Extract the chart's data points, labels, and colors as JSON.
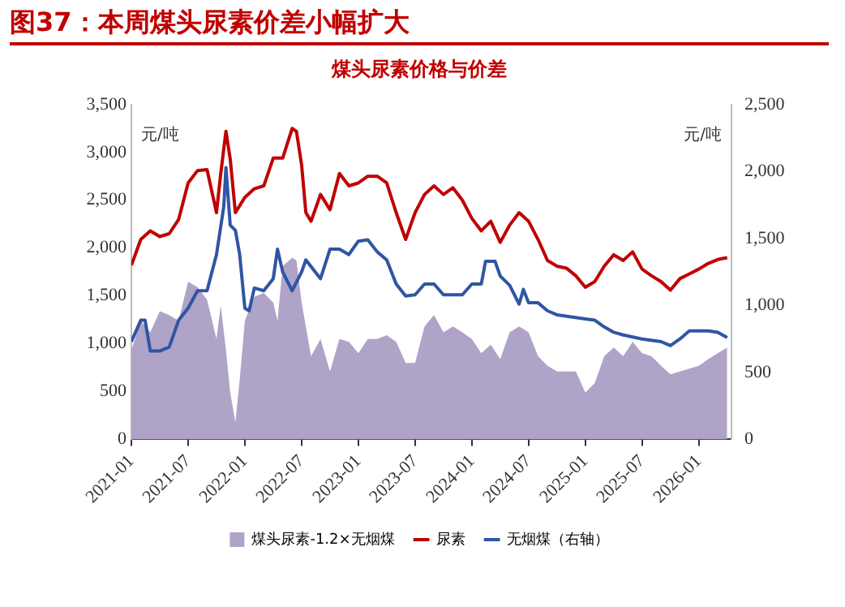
{
  "chart_data": {
    "type": "area",
    "title": "图37：本周煤头尿素价差小幅扩大",
    "subtitle": "煤头尿素价格与价差",
    "annotations": [
      "元/吨",
      "元/吨"
    ],
    "xlim": [
      "2021-01",
      "2026-04-15"
    ],
    "xticks": [
      "2021-01",
      "2021-07",
      "2022-01",
      "2022-07",
      "2023-01",
      "2023-07",
      "2024-01",
      "2024-07",
      "2025-01",
      "2025-07",
      "2026-01"
    ],
    "ylim": [
      0,
      3500
    ],
    "yticks": [
      0,
      500,
      {
        "value": 1000,
        "label": "1,000"
      },
      {
        "value": 1500,
        "label": "1,500"
      },
      {
        "value": 2000,
        "label": "2,000"
      },
      {
        "value": 2500,
        "label": "2,500"
      },
      {
        "value": 3000,
        "label": "3,000"
      },
      {
        "value": 3500,
        "label": "3,500"
      }
    ],
    "y2lim": [
      0,
      2500
    ],
    "y2ticks": [
      0,
      500,
      {
        "value": 1000,
        "label": "1,000"
      },
      {
        "value": 1500,
        "label": "1,500"
      },
      {
        "value": 2000,
        "label": "2,000"
      },
      {
        "value": 2500,
        "label": "2,500"
      }
    ],
    "grid": false,
    "legend": "bottom",
    "marker": "none",
    "series": [
      {
        "name": "煤头尿素-1.2×无烟煤",
        "type": "area",
        "color": "#b0a3c8",
        "x": [
          "2021-01",
          "2021-02",
          "2021-03",
          "2021-04",
          "2021-05",
          "2021-06",
          "2021-07",
          "2021-08",
          "2021-09",
          "2021-10",
          "2021-10-15",
          "2021-11",
          "2021-11-15",
          "2021-12",
          "2021-12-15",
          "2022-01",
          "2022-02",
          "2022-03",
          "2022-04",
          "2022-04-15",
          "2022-05",
          "2022-06",
          "2022-06-15",
          "2022-07",
          "2022-08",
          "2022-09",
          "2022-10",
          "2022-11",
          "2022-12",
          "2023-01",
          "2023-02",
          "2023-03",
          "2023-04",
          "2023-05",
          "2023-06",
          "2023-07",
          "2023-08",
          "2023-09",
          "2023-10",
          "2023-11",
          "2023-12",
          "2024-01",
          "2024-02",
          "2024-03",
          "2024-04",
          "2024-05",
          "2024-06",
          "2024-07",
          "2024-08",
          "2024-09",
          "2024-10",
          "2024-11",
          "2024-12",
          "2025-01",
          "2025-02",
          "2025-03",
          "2025-04",
          "2025-05",
          "2025-06",
          "2025-07",
          "2025-08",
          "2025-09",
          "2025-10",
          "2025-11",
          "2025-12",
          "2026-01",
          "2026-02",
          "2026-03",
          "2026-04"
        ],
        "values": [
          930,
          1240,
          1120,
          1340,
          1300,
          1240,
          1650,
          1590,
          1460,
          1050,
          1400,
          930,
          490,
          180,
          620,
          1240,
          1490,
          1530,
          1430,
          1240,
          1810,
          1900,
          1870,
          1430,
          870,
          1050,
          710,
          1050,
          1020,
          900,
          1050,
          1050,
          1090,
          1020,
          800,
          800,
          1180,
          1300,
          1120,
          1180,
          1120,
          1050,
          900,
          990,
          840,
          1120,
          1180,
          1120,
          870,
          770,
          710,
          710,
          710,
          490,
          590,
          870,
          960,
          870,
          1020,
          900,
          870,
          770,
          680,
          710,
          740,
          770,
          840,
          900,
          960
        ]
      },
      {
        "name": "尿素",
        "type": "line",
        "color": "#c00000",
        "x": [
          "2021-01",
          "2021-02",
          "2021-03",
          "2021-04",
          "2021-05",
          "2021-06",
          "2021-07",
          "2021-08",
          "2021-09",
          "2021-10",
          "2021-10-15",
          "2021-11",
          "2021-11-15",
          "2021-12",
          "2022-01",
          "2022-02",
          "2022-03",
          "2022-04",
          "2022-05",
          "2022-06",
          "2022-06-15",
          "2022-07",
          "2022-07-15",
          "2022-08",
          "2022-09",
          "2022-10",
          "2022-11",
          "2022-12",
          "2023-01",
          "2023-02",
          "2023-03",
          "2023-04",
          "2023-05",
          "2023-06",
          "2023-07",
          "2023-08",
          "2023-09",
          "2023-10",
          "2023-11",
          "2023-12",
          "2024-01",
          "2024-02",
          "2024-03",
          "2024-04",
          "2024-05",
          "2024-06",
          "2024-07",
          "2024-08",
          "2024-09",
          "2024-10",
          "2024-11",
          "2024-12",
          "2025-01",
          "2025-02",
          "2025-03",
          "2025-04",
          "2025-05",
          "2025-06",
          "2025-07",
          "2025-08",
          "2025-09",
          "2025-10",
          "2025-11",
          "2025-12",
          "2026-01",
          "2026-02",
          "2026-03",
          "2026-04"
        ],
        "values": [
          1820,
          2090,
          2180,
          2120,
          2150,
          2300,
          2680,
          2810,
          2820,
          2370,
          2780,
          3220,
          2930,
          2370,
          2530,
          2620,
          2650,
          2940,
          2940,
          3250,
          3220,
          2870,
          2370,
          2280,
          2560,
          2400,
          2780,
          2650,
          2680,
          2750,
          2750,
          2680,
          2370,
          2090,
          2370,
          2560,
          2650,
          2560,
          2630,
          2500,
          2310,
          2180,
          2280,
          2060,
          2240,
          2370,
          2280,
          2090,
          1870,
          1810,
          1790,
          1710,
          1590,
          1650,
          1810,
          1930,
          1870,
          1960,
          1780,
          1710,
          1650,
          1560,
          1680,
          1730,
          1780,
          1840,
          1880,
          1900
        ]
      },
      {
        "name": "无烟煤（右轴）",
        "type": "line",
        "axis": "y2",
        "color": "#2f55a4",
        "x": [
          "2021-01",
          "2021-02",
          "2021-02-15",
          "2021-03",
          "2021-04",
          "2021-05",
          "2021-06",
          "2021-07",
          "2021-08",
          "2021-09",
          "2021-10",
          "2021-10-25",
          "2021-11",
          "2021-11-15",
          "2021-12",
          "2021-12-15",
          "2022-01",
          "2022-01-15",
          "2022-02",
          "2022-03",
          "2022-04",
          "2022-04-15",
          "2022-05",
          "2022-06",
          "2022-07",
          "2022-07-15",
          "2022-08",
          "2022-09",
          "2022-10",
          "2022-11",
          "2022-12",
          "2023-01",
          "2023-02",
          "2023-03",
          "2023-04",
          "2023-05",
          "2023-06",
          "2023-07",
          "2023-08",
          "2023-09",
          "2023-10",
          "2023-12",
          "2024-01",
          "2024-02",
          "2024-02-15",
          "2024-03-15",
          "2024-04",
          "2024-05",
          "2024-06",
          "2024-06-15",
          "2024-07",
          "2024-08",
          "2024-09",
          "2024-10",
          "2025-01",
          "2025-02",
          "2025-03",
          "2025-04",
          "2025-05",
          "2025-07",
          "2025-09",
          "2025-10",
          "2025-11",
          "2025-12",
          "2026-02",
          "2026-03",
          "2026-04"
        ],
        "values": [
          730,
          890,
          890,
          660,
          660,
          690,
          890,
          980,
          1110,
          1110,
          1380,
          1740,
          2030,
          1600,
          1560,
          1380,
          980,
          960,
          1130,
          1110,
          1200,
          1420,
          1250,
          1110,
          1250,
          1340,
          1290,
          1200,
          1420,
          1420,
          1380,
          1480,
          1490,
          1400,
          1340,
          1160,
          1070,
          1080,
          1160,
          1160,
          1080,
          1080,
          1160,
          1160,
          1330,
          1330,
          1220,
          1150,
          1010,
          1120,
          1020,
          1020,
          960,
          930,
          900,
          890,
          840,
          800,
          780,
          750,
          730,
          700,
          750,
          810,
          810,
          800,
          760
        ]
      }
    ]
  }
}
